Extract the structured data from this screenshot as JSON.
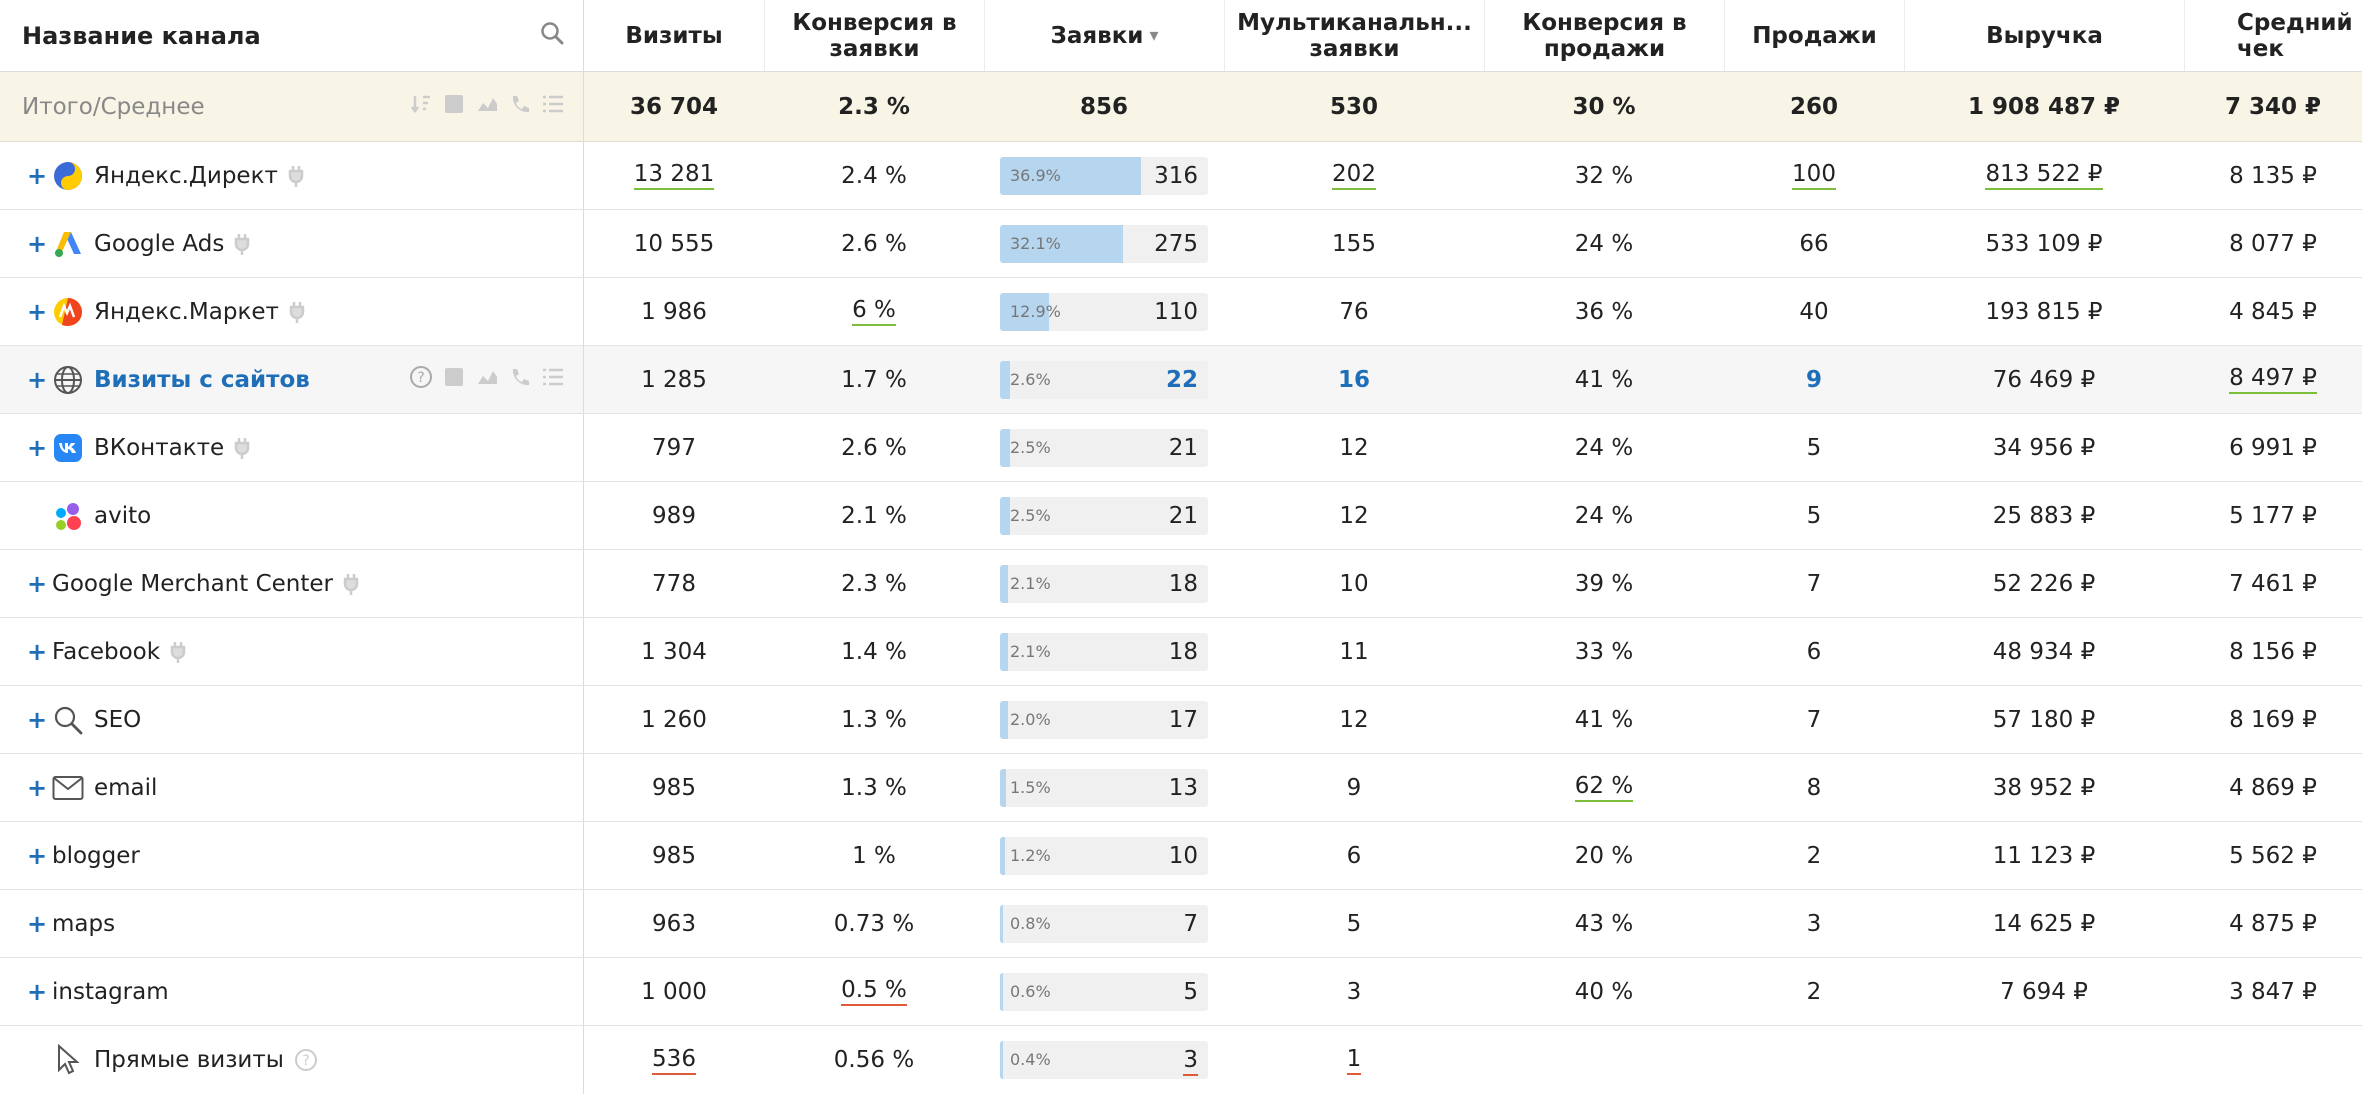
{
  "header": {
    "channel": "Название канала",
    "visits": "Визиты",
    "conv_leads": "Конверсия в заявки",
    "leads": "Заявки",
    "multi": "Мультиканальн... заявки",
    "conv_sales": "Конверсия в продажи",
    "sales": "Продажи",
    "revenue": "Выручка",
    "avg_check": "Средний чек",
    "sort_arrow": "▾"
  },
  "total": {
    "label": "Итого/Среднее",
    "visits": "36 704",
    "conv_leads": "2.3 %",
    "leads": "856",
    "multi": "530",
    "conv_sales": "30 %",
    "sales": "260",
    "revenue": "1 908 487 ₽",
    "avg_check": "7 340 ₽"
  },
  "rows": [
    {
      "name": "Яндекс.Директ",
      "visits": "13 281",
      "conv_leads": "2.4 %",
      "bar_pct": "36.9%",
      "leads": "316",
      "multi": "202",
      "conv_sales": "32 %",
      "sales": "100",
      "revenue": "813 522 ₽",
      "avg_check": "8 135 ₽"
    },
    {
      "name": "Google Ads",
      "visits": "10 555",
      "conv_leads": "2.6 %",
      "bar_pct": "32.1%",
      "leads": "275",
      "multi": "155",
      "conv_sales": "24 %",
      "sales": "66",
      "revenue": "533 109 ₽",
      "avg_check": "8 077 ₽"
    },
    {
      "name": "Яндекс.Маркет",
      "visits": "1 986",
      "conv_leads": "6 %",
      "bar_pct": "12.9%",
      "leads": "110",
      "multi": "76",
      "conv_sales": "36 %",
      "sales": "40",
      "revenue": "193 815 ₽",
      "avg_check": "4 845 ₽"
    },
    {
      "name": "Визиты с сайтов",
      "visits": "1 285",
      "conv_leads": "1.7 %",
      "bar_pct": "2.6%",
      "leads": "22",
      "multi": "16",
      "conv_sales": "41 %",
      "sales": "9",
      "revenue": "76 469 ₽",
      "avg_check": "8 497 ₽"
    },
    {
      "name": "ВКонтакте",
      "visits": "797",
      "conv_leads": "2.6 %",
      "bar_pct": "2.5%",
      "leads": "21",
      "multi": "12",
      "conv_sales": "24 %",
      "sales": "5",
      "revenue": "34 956 ₽",
      "avg_check": "6 991 ₽"
    },
    {
      "name": "avito",
      "visits": "989",
      "conv_leads": "2.1 %",
      "bar_pct": "2.5%",
      "leads": "21",
      "multi": "12",
      "conv_sales": "24 %",
      "sales": "5",
      "revenue": "25 883 ₽",
      "avg_check": "5 177 ₽"
    },
    {
      "name": "Google Merchant Center",
      "visits": "778",
      "conv_leads": "2.3 %",
      "bar_pct": "2.1%",
      "leads": "18",
      "multi": "10",
      "conv_sales": "39 %",
      "sales": "7",
      "revenue": "52 226 ₽",
      "avg_check": "7 461 ₽"
    },
    {
      "name": "Facebook",
      "visits": "1 304",
      "conv_leads": "1.4 %",
      "bar_pct": "2.1%",
      "leads": "18",
      "multi": "11",
      "conv_sales": "33 %",
      "sales": "6",
      "revenue": "48 934 ₽",
      "avg_check": "8 156 ₽"
    },
    {
      "name": "SEO",
      "visits": "1 260",
      "conv_leads": "1.3 %",
      "bar_pct": "2.0%",
      "leads": "17",
      "multi": "12",
      "conv_sales": "41 %",
      "sales": "7",
      "revenue": "57 180 ₽",
      "avg_check": "8 169 ₽"
    },
    {
      "name": "email",
      "visits": "985",
      "conv_leads": "1.3 %",
      "bar_pct": "1.5%",
      "leads": "13",
      "multi": "9",
      "conv_sales": "62 %",
      "sales": "8",
      "revenue": "38 952 ₽",
      "avg_check": "4 869 ₽"
    },
    {
      "name": "blogger",
      "visits": "985",
      "conv_leads": "1 %",
      "bar_pct": "1.2%",
      "leads": "10",
      "multi": "6",
      "conv_sales": "20 %",
      "sales": "2",
      "revenue": "11 123 ₽",
      "avg_check": "5 562 ₽"
    },
    {
      "name": "maps",
      "visits": "963",
      "conv_leads": "0.73 %",
      "bar_pct": "0.8%",
      "leads": "7",
      "multi": "5",
      "conv_sales": "43 %",
      "sales": "3",
      "revenue": "14 625 ₽",
      "avg_check": "4 875 ₽"
    },
    {
      "name": "instagram",
      "visits": "1 000",
      "conv_leads": "0.5 %",
      "bar_pct": "0.6%",
      "leads": "5",
      "multi": "3",
      "conv_sales": "40 %",
      "sales": "2",
      "revenue": "7 694 ₽",
      "avg_check": "3 847 ₽"
    },
    {
      "name": "Прямые визиты",
      "visits": "536",
      "conv_leads": "0.56 %",
      "bar_pct": "0.4%",
      "leads": "3",
      "multi": "1",
      "conv_sales": "",
      "sales": "",
      "revenue": "",
      "avg_check": ""
    }
  ],
  "bar_fractions": [
    0.369,
    0.321,
    0.129,
    0.026,
    0.025,
    0.025,
    0.021,
    0.021,
    0.02,
    0.015,
    0.012,
    0.008,
    0.006,
    0.004
  ],
  "colors": {
    "accent": "#1e6fb8",
    "bar": "#b6d6ef",
    "good": "#7cbd3a",
    "bad": "#e05a3a",
    "total_bg": "#f8f4e6"
  }
}
